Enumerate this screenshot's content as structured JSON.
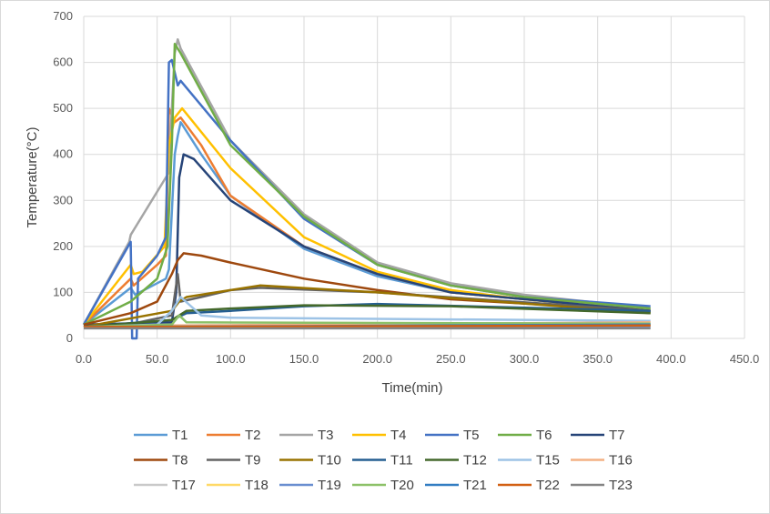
{
  "chart_data": {
    "type": "line",
    "title": "",
    "xlabel": "Time(min)",
    "ylabel": "Temperature(°C)",
    "xlim": [
      0,
      450
    ],
    "ylim": [
      0,
      700
    ],
    "xticks": [
      "0.0",
      "50.0",
      "100.0",
      "150.0",
      "200.0",
      "250.0",
      "300.0",
      "350.0",
      "400.0",
      "450.0"
    ],
    "yticks": [
      "0",
      "100",
      "200",
      "300",
      "400",
      "500",
      "600",
      "700"
    ],
    "grid": true,
    "legend_position": "bottom",
    "series": [
      {
        "name": "T1",
        "color": "#5B9BD5",
        "points": [
          [
            0,
            30
          ],
          [
            32,
            110
          ],
          [
            35,
            95
          ],
          [
            50,
            120
          ],
          [
            56,
            130
          ],
          [
            58,
            150
          ],
          [
            62,
            400
          ],
          [
            64,
            440
          ],
          [
            66,
            470
          ],
          [
            80,
            400
          ],
          [
            100,
            310
          ],
          [
            150,
            195
          ],
          [
            200,
            135
          ],
          [
            250,
            100
          ],
          [
            386,
            60
          ]
        ]
      },
      {
        "name": "T2",
        "color": "#ED7D31",
        "points": [
          [
            0,
            30
          ],
          [
            32,
            130
          ],
          [
            34,
            115
          ],
          [
            50,
            160
          ],
          [
            56,
            180
          ],
          [
            58,
            500
          ],
          [
            62,
            470
          ],
          [
            66,
            480
          ],
          [
            80,
            420
          ],
          [
            100,
            310
          ],
          [
            150,
            200
          ],
          [
            200,
            140
          ],
          [
            250,
            100
          ],
          [
            386,
            60
          ]
        ]
      },
      {
        "name": "T3",
        "color": "#A5A5A5",
        "points": [
          [
            0,
            30
          ],
          [
            31,
            210
          ],
          [
            32,
            225
          ],
          [
            56,
            350
          ],
          [
            58,
            360
          ],
          [
            60,
            500
          ],
          [
            62,
            620
          ],
          [
            64,
            650
          ],
          [
            66,
            630
          ],
          [
            100,
            430
          ],
          [
            150,
            270
          ],
          [
            200,
            165
          ],
          [
            250,
            120
          ],
          [
            300,
            95
          ],
          [
            386,
            65
          ]
        ]
      },
      {
        "name": "T4",
        "color": "#FFC000",
        "points": [
          [
            0,
            30
          ],
          [
            32,
            160
          ],
          [
            34,
            140
          ],
          [
            40,
            145
          ],
          [
            55,
            200
          ],
          [
            58,
            420
          ],
          [
            62,
            480
          ],
          [
            67,
            500
          ],
          [
            100,
            370
          ],
          [
            150,
            220
          ],
          [
            200,
            145
          ],
          [
            250,
            105
          ],
          [
            300,
            85
          ],
          [
            386,
            60
          ]
        ]
      },
      {
        "name": "T5",
        "color": "#4472C4",
        "points": [
          [
            0,
            30
          ],
          [
            32,
            210
          ],
          [
            33,
            0
          ],
          [
            36,
            0
          ],
          [
            37,
            130
          ],
          [
            50,
            180
          ],
          [
            56,
            220
          ],
          [
            58,
            600
          ],
          [
            60,
            605
          ],
          [
            64,
            550
          ],
          [
            66,
            560
          ],
          [
            100,
            430
          ],
          [
            150,
            260
          ],
          [
            200,
            160
          ],
          [
            250,
            115
          ],
          [
            300,
            90
          ],
          [
            386,
            70
          ]
        ]
      },
      {
        "name": "T6",
        "color": "#70AD47",
        "points": [
          [
            0,
            30
          ],
          [
            32,
            80
          ],
          [
            50,
            130
          ],
          [
            57,
            200
          ],
          [
            60,
            420
          ],
          [
            62,
            640
          ],
          [
            66,
            620
          ],
          [
            100,
            420
          ],
          [
            150,
            265
          ],
          [
            200,
            160
          ],
          [
            250,
            115
          ],
          [
            300,
            90
          ],
          [
            386,
            65
          ]
        ]
      },
      {
        "name": "T7",
        "color": "#264478",
        "points": [
          [
            0,
            30
          ],
          [
            60,
            35
          ],
          [
            63,
            100
          ],
          [
            65,
            350
          ],
          [
            68,
            400
          ],
          [
            75,
            390
          ],
          [
            100,
            300
          ],
          [
            150,
            200
          ],
          [
            200,
            140
          ],
          [
            250,
            100
          ],
          [
            386,
            60
          ]
        ]
      },
      {
        "name": "T8",
        "color": "#9E480E",
        "points": [
          [
            0,
            30
          ],
          [
            32,
            55
          ],
          [
            50,
            80
          ],
          [
            60,
            140
          ],
          [
            64,
            170
          ],
          [
            68,
            185
          ],
          [
            80,
            180
          ],
          [
            100,
            165
          ],
          [
            150,
            130
          ],
          [
            200,
            105
          ],
          [
            250,
            85
          ],
          [
            386,
            60
          ]
        ]
      },
      {
        "name": "T9",
        "color": "#636363",
        "points": [
          [
            0,
            25
          ],
          [
            30,
            30
          ],
          [
            60,
            50
          ],
          [
            64,
            140
          ],
          [
            66,
            80
          ],
          [
            80,
            90
          ],
          [
            100,
            105
          ],
          [
            120,
            110
          ],
          [
            200,
            100
          ],
          [
            386,
            60
          ]
        ]
      },
      {
        "name": "T10",
        "color": "#997300",
        "points": [
          [
            0,
            25
          ],
          [
            60,
            60
          ],
          [
            65,
            80
          ],
          [
            70,
            90
          ],
          [
            100,
            105
          ],
          [
            120,
            115
          ],
          [
            200,
            100
          ],
          [
            386,
            55
          ]
        ]
      },
      {
        "name": "T11",
        "color": "#255E91",
        "points": [
          [
            0,
            25
          ],
          [
            60,
            40
          ],
          [
            70,
            55
          ],
          [
            100,
            60
          ],
          [
            150,
            70
          ],
          [
            200,
            75
          ],
          [
            386,
            60
          ]
        ]
      },
      {
        "name": "T12",
        "color": "#43682B",
        "points": [
          [
            0,
            25
          ],
          [
            60,
            40
          ],
          [
            70,
            60
          ],
          [
            100,
            65
          ],
          [
            150,
            72
          ],
          [
            250,
            70
          ],
          [
            386,
            55
          ]
        ]
      },
      {
        "name": "T15",
        "color": "#9DC3E6",
        "points": [
          [
            0,
            25
          ],
          [
            50,
            30
          ],
          [
            60,
            60
          ],
          [
            66,
            90
          ],
          [
            80,
            50
          ],
          [
            100,
            45
          ],
          [
            386,
            38
          ]
        ]
      },
      {
        "name": "T16",
        "color": "#F4B183",
        "points": [
          [
            0,
            25
          ],
          [
            60,
            28
          ],
          [
            386,
            35
          ]
        ]
      },
      {
        "name": "T17",
        "color": "#C9C9C9",
        "points": [
          [
            0,
            25
          ],
          [
            386,
            30
          ]
        ]
      },
      {
        "name": "T18",
        "color": "#FFD966",
        "points": [
          [
            0,
            25
          ],
          [
            386,
            28
          ]
        ]
      },
      {
        "name": "T19",
        "color": "#698ED0",
        "points": [
          [
            0,
            25
          ],
          [
            386,
            25
          ]
        ]
      },
      {
        "name": "T20",
        "color": "#8CC168",
        "points": [
          [
            0,
            25
          ],
          [
            60,
            30
          ],
          [
            65,
            50
          ],
          [
            70,
            35
          ],
          [
            386,
            32
          ]
        ]
      },
      {
        "name": "T21",
        "color": "#327DC2",
        "points": [
          [
            0,
            25
          ],
          [
            386,
            30
          ]
        ]
      },
      {
        "name": "T22",
        "color": "#D26012",
        "points": [
          [
            0,
            25
          ],
          [
            386,
            28
          ]
        ]
      },
      {
        "name": "T23",
        "color": "#848484",
        "points": [
          [
            0,
            22
          ],
          [
            386,
            22
          ]
        ]
      }
    ]
  }
}
